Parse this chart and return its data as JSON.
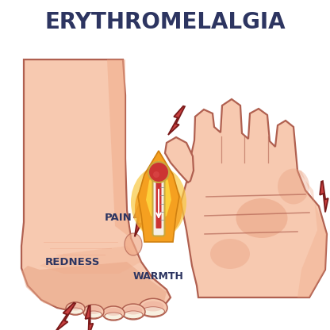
{
  "title": "ERYTHROMELALGIA",
  "title_color": "#2d3561",
  "title_fontsize": 20,
  "background_color": "#ffffff",
  "skin_light": "#f7c9b0",
  "skin_medium": "#f0aa88",
  "skin_dark": "#e89070",
  "skin_red": "#e89080",
  "skin_outline": "#b06050",
  "lightning_color": "#c84040",
  "lightning_outline": "#8b2020",
  "flame_orange": "#f5a020",
  "flame_yellow": "#ffd040",
  "flame_red": "#e05010",
  "label_pain": "PAIN",
  "label_redness": "REDNESS",
  "label_warmth": "WARMTH",
  "label_color": "#2d3561",
  "label_fontsize": 8
}
